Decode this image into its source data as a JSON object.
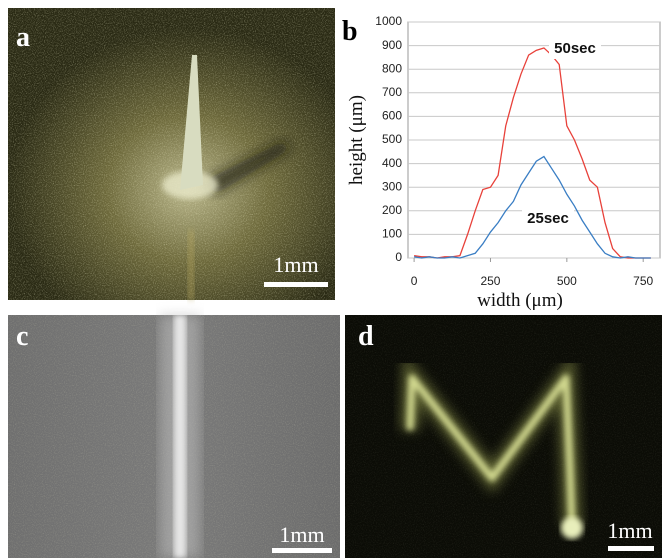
{
  "panels": [
    {
      "label": "a",
      "scale_bar": "1mm"
    },
    {
      "label": "b"
    },
    {
      "label": "c",
      "scale_bar": "1mm"
    },
    {
      "label": "d",
      "scale_bar": "1mm"
    }
  ],
  "chart_data": {
    "type": "line",
    "xlabel": "width (μm)",
    "ylabel": "height (μm)",
    "x": [
      0,
      25,
      50,
      75,
      100,
      125,
      150,
      175,
      200,
      225,
      250,
      275,
      300,
      325,
      350,
      375,
      400,
      425,
      450,
      475,
      500,
      525,
      550,
      575,
      600,
      625,
      650,
      675,
      700,
      725,
      750,
      775
    ],
    "series": [
      {
        "name": "50sec",
        "color": "#e8413a",
        "values": [
          10,
          5,
          5,
          0,
          5,
          5,
          10,
          100,
          200,
          290,
          300,
          350,
          560,
          680,
          780,
          860,
          880,
          890,
          860,
          820,
          560,
          500,
          420,
          330,
          300,
          150,
          40,
          5,
          0,
          0,
          0,
          0
        ]
      },
      {
        "name": "25sec",
        "color": "#3a7ec4",
        "values": [
          5,
          0,
          5,
          0,
          0,
          5,
          0,
          10,
          20,
          60,
          110,
          150,
          200,
          240,
          310,
          360,
          410,
          430,
          380,
          330,
          270,
          220,
          160,
          110,
          60,
          20,
          5,
          0,
          5,
          0,
          0,
          0
        ]
      }
    ],
    "xlim": [
      -20,
      805
    ],
    "ylim": [
      0,
      1000
    ],
    "xticks": [
      0,
      250,
      500,
      750
    ],
    "yticks": [
      0,
      100,
      200,
      300,
      400,
      500,
      600,
      700,
      800,
      900,
      1000
    ],
    "grid": true
  }
}
